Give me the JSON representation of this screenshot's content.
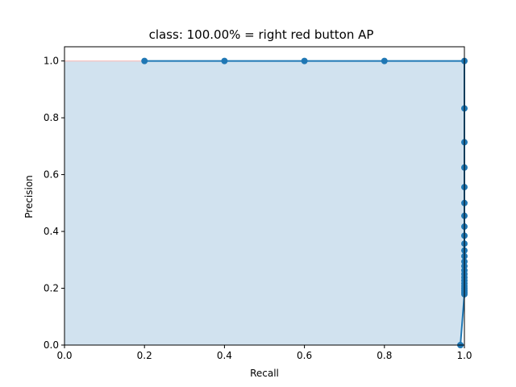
{
  "chart_data": {
    "type": "line",
    "title": "class: 100.00% = right red button AP",
    "xlabel": "Recall",
    "ylabel": "Precision",
    "xlim": [
      0.0,
      1.0
    ],
    "ylim": [
      0.0,
      1.05
    ],
    "x_ticks": [
      "0.0",
      "0.2",
      "0.4",
      "0.6",
      "0.8",
      "1.0"
    ],
    "y_ticks": [
      "0.0",
      "0.2",
      "0.4",
      "0.6",
      "0.8",
      "1.0"
    ],
    "grid": false,
    "colors": {
      "series": "#1f77b4",
      "fill": "#d1e2ef",
      "reference": "#f4c7c7"
    },
    "reference_line": {
      "y": 1.0
    },
    "series": [
      {
        "x": [
          0.2,
          0.4,
          0.6,
          0.8,
          1.0,
          1.0,
          1.0,
          1.0,
          1.0,
          1.0,
          1.0,
          1.0,
          1.0,
          1.0,
          1.0,
          1.0,
          1.0,
          1.0,
          1.0,
          1.0,
          1.0,
          1.0,
          1.0,
          1.0,
          1.0,
          1.0,
          1.0,
          1.0,
          0.99
        ],
        "y": [
          1.0,
          1.0,
          1.0,
          1.0,
          1.0,
          0.833,
          0.714,
          0.625,
          0.556,
          0.5,
          0.455,
          0.417,
          0.385,
          0.357,
          0.333,
          0.313,
          0.294,
          0.278,
          0.263,
          0.25,
          0.238,
          0.227,
          0.217,
          0.208,
          0.2,
          0.192,
          0.185,
          0.179,
          0.0
        ]
      }
    ]
  }
}
